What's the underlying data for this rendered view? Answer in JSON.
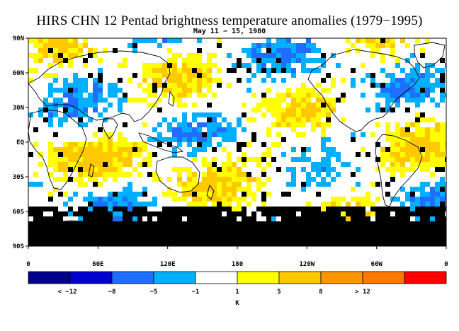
{
  "title": "HIRS CHN 12 Pentad brightness temperature anomalies (1979−1995)",
  "subtitle": "May 11 − 15, 1980",
  "lat_labels": [
    "90N",
    "60N",
    "30N",
    "EQ",
    "30S",
    "60S",
    "90S"
  ],
  "lon_labels": [
    "0",
    "60E",
    "120E",
    "180",
    "120W",
    "60W",
    "0"
  ],
  "colorbar": {
    "colors": [
      "#00008b",
      "#0000cd",
      "#1e6fff",
      "#00b0ff",
      "#ffffff",
      "#ffff00",
      "#ffc800",
      "#ff9600",
      "#ff7800",
      "#ff0000"
    ],
    "labels": [
      "< −12",
      "−8",
      "−5",
      "−1",
      "1",
      "5",
      "8",
      "> 12"
    ],
    "unit": "K"
  },
  "colors": {
    "missing": "#000000",
    "background": "#ffffff",
    "coastline": "#000000"
  }
}
